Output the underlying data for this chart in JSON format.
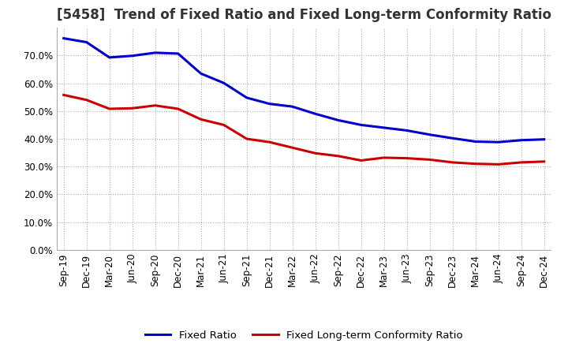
{
  "title": "[5458]  Trend of Fixed Ratio and Fixed Long-term Conformity Ratio",
  "x_labels": [
    "Sep-19",
    "Dec-19",
    "Mar-20",
    "Jun-20",
    "Sep-20",
    "Dec-20",
    "Mar-21",
    "Jun-21",
    "Sep-21",
    "Dec-21",
    "Mar-22",
    "Jun-22",
    "Sep-22",
    "Dec-22",
    "Mar-23",
    "Jun-23",
    "Sep-23",
    "Dec-23",
    "Mar-24",
    "Jun-24",
    "Sep-24",
    "Dec-24"
  ],
  "fixed_ratio": [
    0.762,
    0.748,
    0.693,
    0.699,
    0.71,
    0.707,
    0.635,
    0.601,
    0.548,
    0.526,
    0.516,
    0.49,
    0.467,
    0.45,
    0.44,
    0.43,
    0.415,
    0.402,
    0.39,
    0.388,
    0.395,
    0.398
  ],
  "fixed_lt_ratio": [
    0.558,
    0.54,
    0.508,
    0.51,
    0.52,
    0.508,
    0.47,
    0.45,
    0.4,
    0.388,
    0.368,
    0.348,
    0.338,
    0.322,
    0.332,
    0.33,
    0.325,
    0.315,
    0.31,
    0.308,
    0.315,
    0.318
  ],
  "fixed_ratio_color": "#0000CC",
  "fixed_lt_ratio_color": "#CC0000",
  "ylim": [
    0.0,
    0.8
  ],
  "yticks": [
    0.0,
    0.1,
    0.2,
    0.3,
    0.4,
    0.5,
    0.6,
    0.7
  ],
  "legend_fixed": "Fixed Ratio",
  "legend_lt": "Fixed Long-term Conformity Ratio",
  "grid_color": "#AAAAAA",
  "background_color": "#FFFFFF",
  "title_fontsize": 12,
  "label_fontsize": 8.5
}
